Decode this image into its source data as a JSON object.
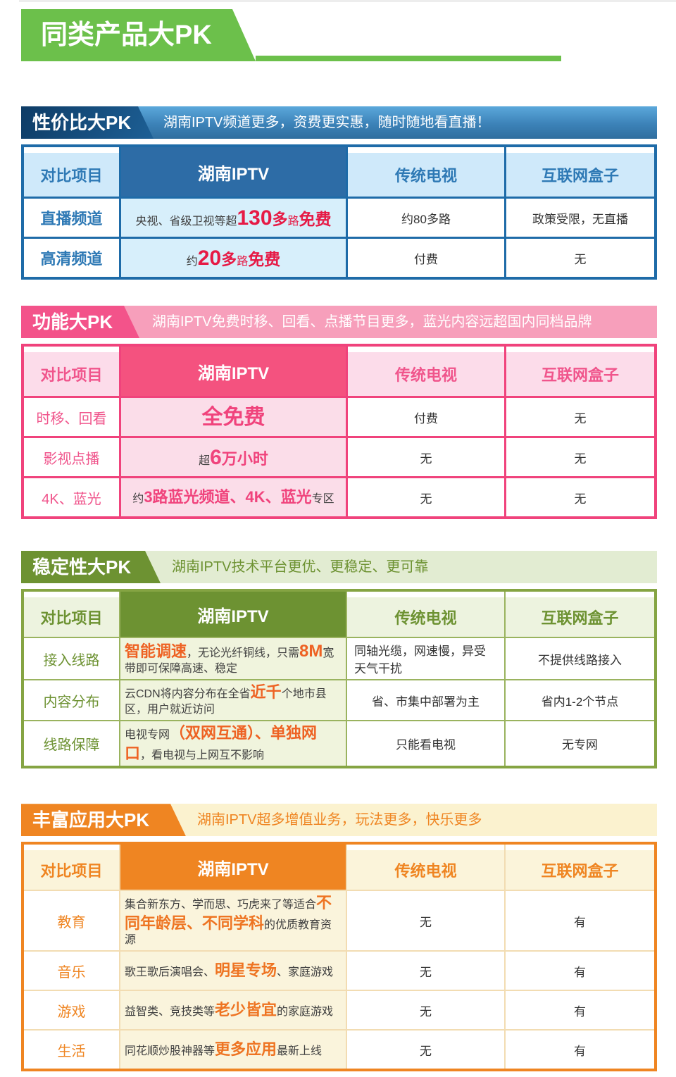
{
  "banner": {
    "title": "同类产品大PK"
  },
  "columns": {
    "item": "对比项目",
    "iptv": "湖南IPTV",
    "tv": "传统电视",
    "box": "互联网盒子"
  },
  "colors": {
    "banner_green": "#6cc04b",
    "blue_theme": "#2d6ca6",
    "blue_red_accent": "#e61a45",
    "pink_theme": "#f4527f",
    "pink_accent": "#f0437c",
    "green_theme": "#6d9232",
    "green_orange_accent": "#ee6223",
    "orange_theme": "#ef8522",
    "orange_accent": "#ee7422"
  },
  "sections": [
    {
      "badge": "性价比大PK",
      "subtitle": "湖南IPTV频道更多，资费更实惠，随时随地看直播！",
      "rows": [
        {
          "label": "直播频道",
          "iptv": [
            "央视、省级卫视等超",
            "130",
            "多",
            "路",
            "免费"
          ],
          "tv": "约80多路",
          "box": "政策受限，无直播"
        },
        {
          "label": "高清频道",
          "iptv": [
            "约",
            "20",
            "多",
            "路",
            "免费"
          ],
          "tv": "付费",
          "box": "无"
        }
      ]
    },
    {
      "badge": "功能大PK",
      "subtitle": "湖南IPTV免费时移、回看、点播节目更多，蓝光内容远超国内同档品牌",
      "rows": [
        {
          "label": "时移、回看",
          "iptv": [
            "全免费"
          ],
          "tv": "付费",
          "box": "无"
        },
        {
          "label": "影视点播",
          "iptv": [
            "超",
            "6",
            "万小时"
          ],
          "tv": "无",
          "box": "无"
        },
        {
          "label": "4K、蓝光",
          "iptv": [
            "约",
            "3路蓝光频道、4K、蓝光",
            "专区"
          ],
          "tv": "无",
          "box": "无"
        }
      ]
    },
    {
      "badge": "稳定性大PK",
      "subtitle": "湖南IPTV技术平台更优、更稳定、更可靠",
      "rows": [
        {
          "label": "接入线路",
          "iptv": [
            "智能调速",
            "，无论光纤铜线，只需",
            "8M",
            "宽带即可保障高速、稳定"
          ],
          "tv": "同轴光缆，网速慢，异受天气干扰",
          "box": "不提供线路接入"
        },
        {
          "label": "内容分布",
          "iptv": [
            "云CDN将内容分布在全省",
            "近千",
            "个地市县区，用户就近访问"
          ],
          "tv": "省、市集中部署为主",
          "box": "省内1-2个节点"
        },
        {
          "label": "线路保障",
          "iptv": [
            "电视专网",
            "（双网互通）、单独网口",
            "，看电视与上网互不影响"
          ],
          "tv": "只能看电视",
          "box": "无专网"
        }
      ]
    },
    {
      "badge": "丰富应用大PK",
      "subtitle": "湖南IPTV超多增值业务，玩法更多，快乐更多",
      "rows": [
        {
          "label": "教育",
          "iptv": [
            "集合新东方、学而思、巧虎来了等适合",
            "不同年龄层、不同学科",
            "的优质教育资源"
          ],
          "tv": "无",
          "box": "有"
        },
        {
          "label": "音乐",
          "iptv": [
            "歌王歌后演唱会、",
            "明星专场",
            "、家庭游戏"
          ],
          "tv": "无",
          "box": "有"
        },
        {
          "label": "游戏",
          "iptv": [
            "益智类、竞技类等",
            "老少皆宜",
            "的家庭游戏"
          ],
          "tv": "无",
          "box": "有"
        },
        {
          "label": "生活",
          "iptv": [
            "同花顺炒股神器等",
            "更多应用",
            "最新上线"
          ],
          "tv": "无",
          "box": "有"
        }
      ]
    }
  ]
}
